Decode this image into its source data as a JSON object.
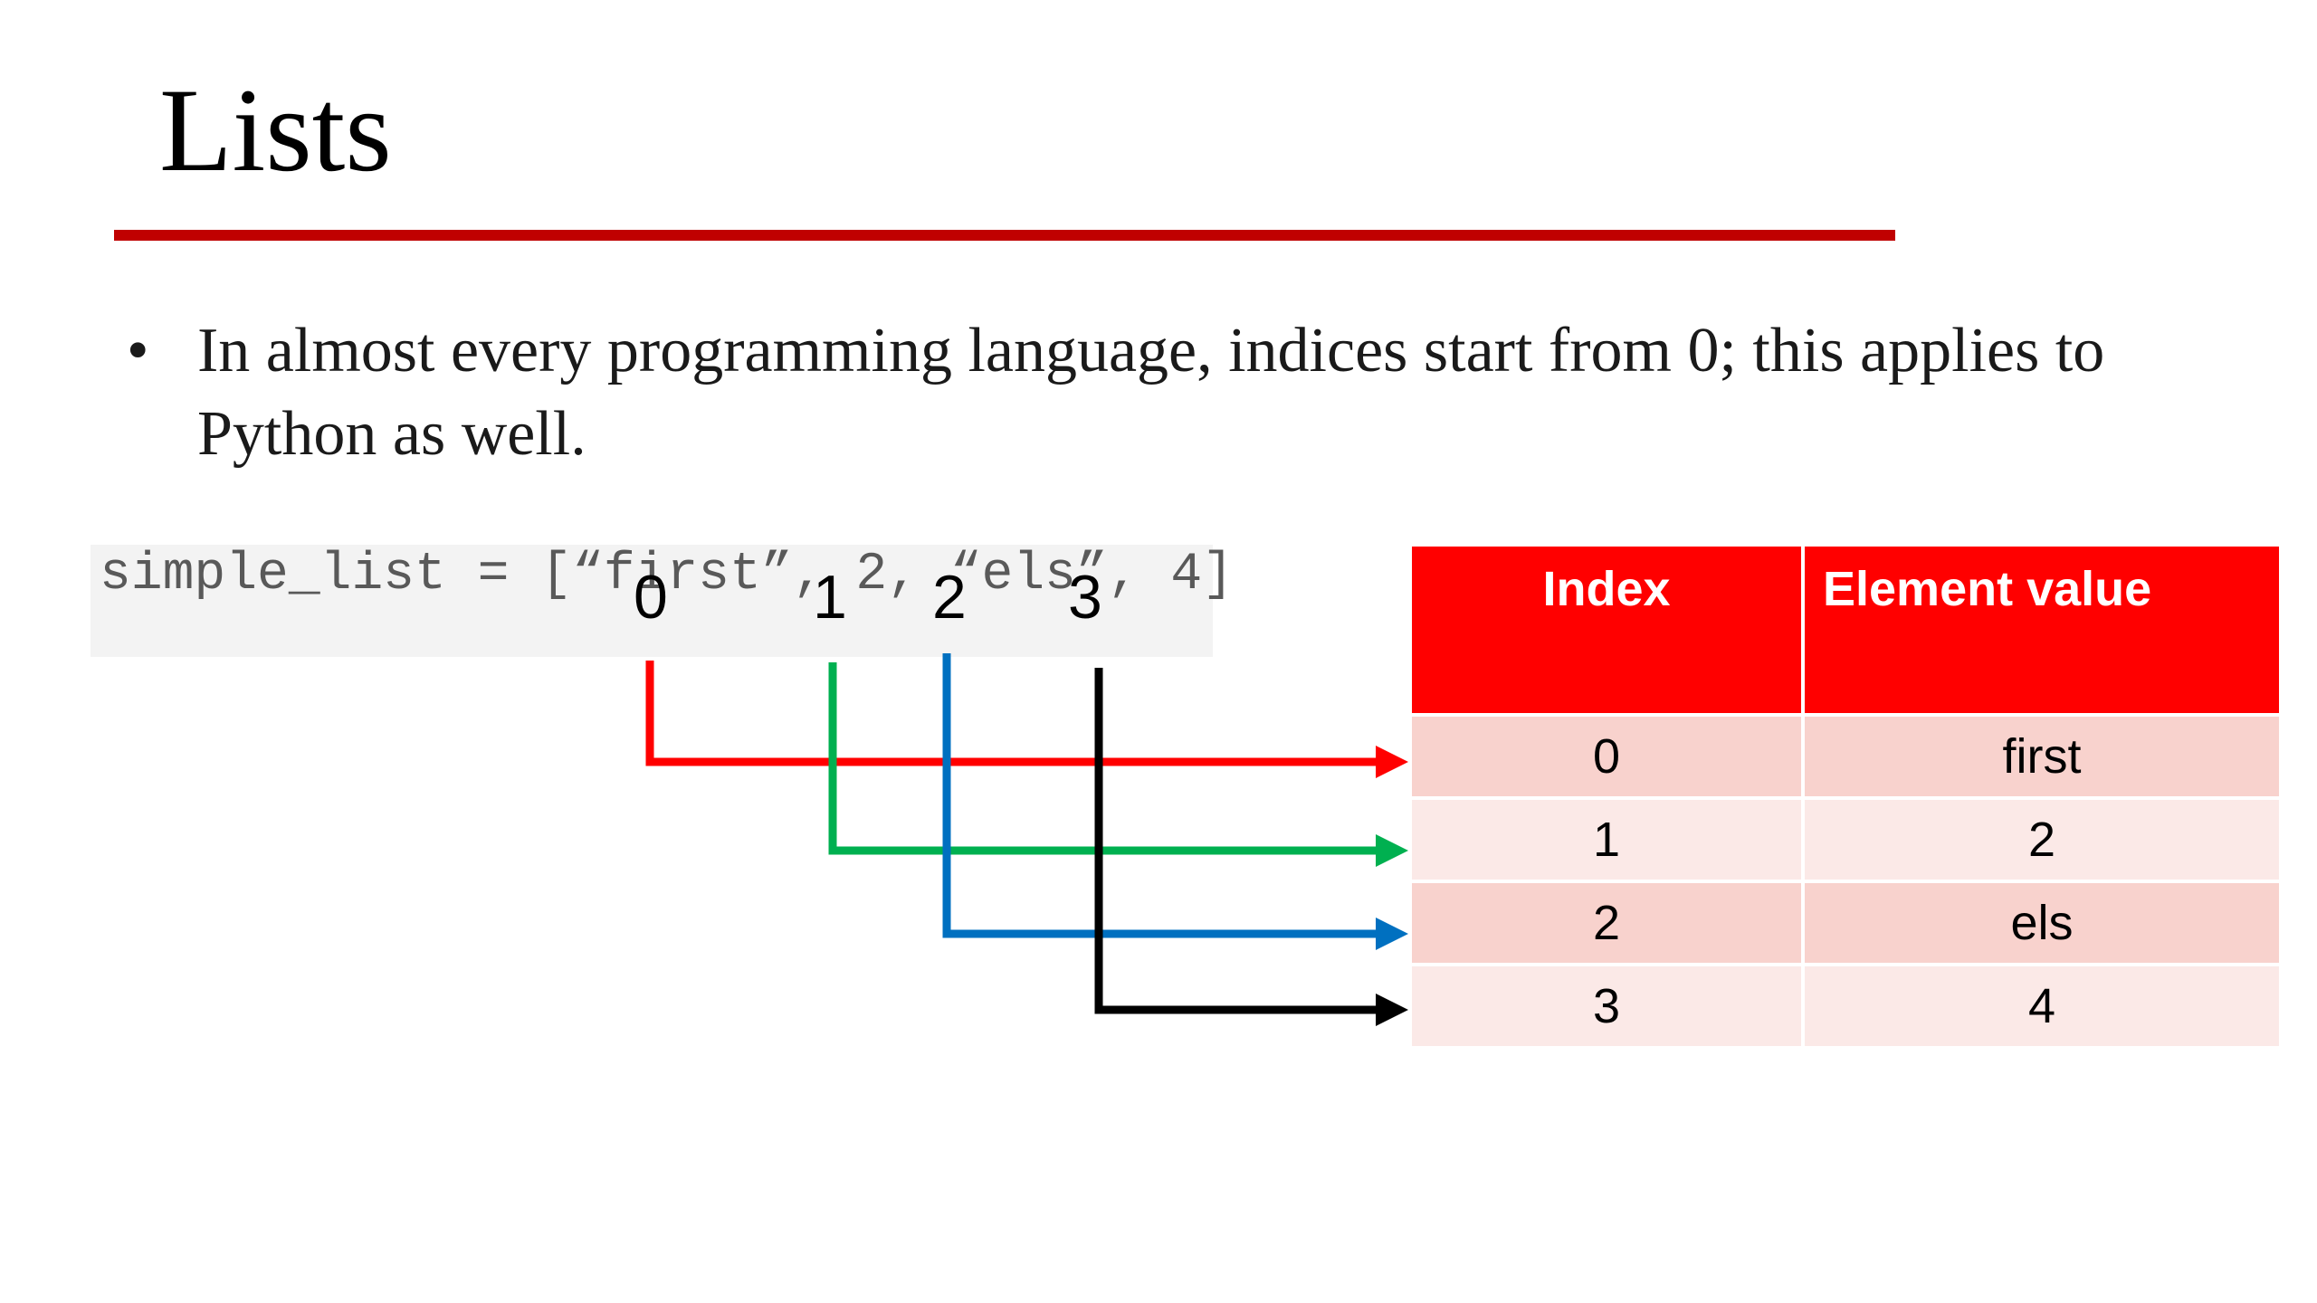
{
  "slide": {
    "title": "Lists",
    "bullet_symbol": "•",
    "bullet_text": "In almost every programming language, indices start from 0; this applies to Python as well."
  },
  "code": {
    "text": "simple_list = [“first”, 2, “els”, 4]",
    "indices": [
      "0",
      "1",
      "2",
      "3"
    ]
  },
  "table": {
    "headers": [
      "Index",
      "Element value"
    ],
    "rows": [
      [
        "0",
        "first"
      ],
      [
        "1",
        "2"
      ],
      [
        "2",
        "els"
      ],
      [
        "3",
        "4"
      ]
    ]
  },
  "arrows": [
    {
      "index": "0",
      "color": "#ff0000"
    },
    {
      "index": "1",
      "color": "#00b050"
    },
    {
      "index": "2",
      "color": "#0070c0"
    },
    {
      "index": "3",
      "color": "#000000"
    }
  ]
}
